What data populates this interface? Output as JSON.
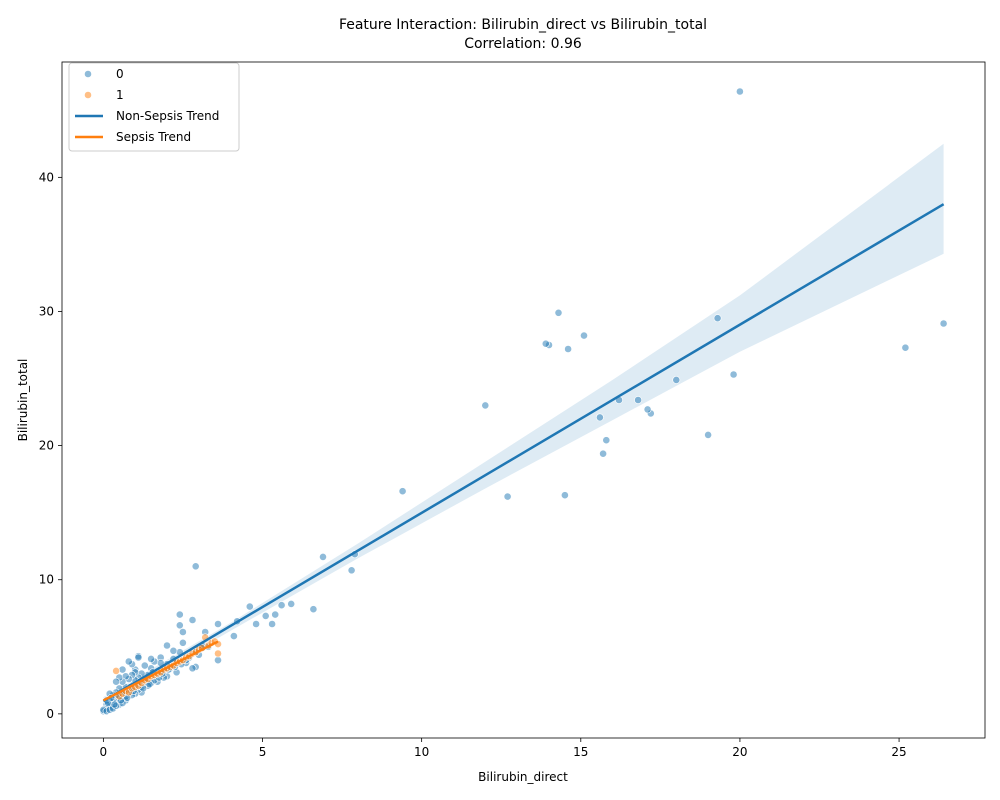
{
  "chart_data": {
    "type": "scatter",
    "title": "Feature Interaction: Bilirubin_direct vs Bilirubin_total",
    "subtitle": "Correlation: 0.96",
    "xlabel": "Bilirubin_direct",
    "ylabel": "Bilirubin_total",
    "xlim": [
      -1.3,
      27.7
    ],
    "ylim": [
      -1.8,
      48.6
    ],
    "xticks": [
      0,
      5,
      10,
      15,
      20,
      25
    ],
    "yticks": [
      0,
      10,
      20,
      30,
      40
    ],
    "grid": false,
    "legend_position": "top-left",
    "colors": {
      "nonsepsis": "#1f77b4",
      "sepsis": "#ff7f0e",
      "band": "#1f77b4"
    },
    "legend": [
      {
        "label": "0",
        "kind": "marker",
        "color": "#1f77b4"
      },
      {
        "label": "1",
        "kind": "marker",
        "color": "#ff7f0e"
      },
      {
        "label": "Non-Sepsis Trend",
        "kind": "line",
        "color": "#1f77b4"
      },
      {
        "label": "Sepsis Trend",
        "kind": "line",
        "color": "#ff7f0e"
      }
    ],
    "series": [
      {
        "name": "0",
        "color": "#1f77b4",
        "points": [
          [
            20.0,
            46.4
          ],
          [
            26.4,
            29.1
          ],
          [
            25.2,
            27.3
          ],
          [
            19.8,
            25.3
          ],
          [
            19.3,
            29.5
          ],
          [
            19.0,
            20.8
          ],
          [
            18.0,
            24.9
          ],
          [
            17.2,
            22.4
          ],
          [
            17.1,
            22.7
          ],
          [
            16.8,
            23.4
          ],
          [
            16.2,
            23.4
          ],
          [
            15.8,
            20.4
          ],
          [
            15.7,
            19.4
          ],
          [
            15.6,
            22.1
          ],
          [
            15.1,
            28.2
          ],
          [
            14.6,
            27.2
          ],
          [
            14.5,
            16.3
          ],
          [
            14.3,
            29.9
          ],
          [
            14.0,
            27.5
          ],
          [
            13.9,
            27.6
          ],
          [
            12.7,
            16.2
          ],
          [
            12.0,
            23.0
          ],
          [
            9.4,
            16.6
          ],
          [
            7.9,
            11.9
          ],
          [
            7.8,
            10.7
          ],
          [
            6.9,
            11.7
          ],
          [
            6.6,
            7.8
          ],
          [
            5.9,
            8.2
          ],
          [
            5.6,
            8.1
          ],
          [
            5.4,
            7.4
          ],
          [
            5.3,
            6.7
          ],
          [
            5.1,
            7.3
          ],
          [
            4.8,
            6.7
          ],
          [
            4.6,
            8.0
          ],
          [
            4.2,
            6.9
          ],
          [
            4.1,
            5.8
          ],
          [
            3.6,
            6.7
          ],
          [
            3.6,
            4.0
          ],
          [
            3.2,
            6.1
          ],
          [
            3.1,
            4.9
          ],
          [
            3.0,
            4.4
          ],
          [
            2.9,
            11.0
          ],
          [
            2.9,
            3.5
          ],
          [
            2.8,
            7.0
          ],
          [
            2.8,
            3.4
          ],
          [
            2.7,
            4.2
          ],
          [
            2.6,
            3.8
          ],
          [
            2.5,
            6.1
          ],
          [
            2.5,
            5.3
          ],
          [
            2.4,
            7.4
          ],
          [
            2.4,
            6.6
          ],
          [
            2.4,
            4.6
          ],
          [
            2.3,
            3.9
          ],
          [
            2.3,
            3.1
          ],
          [
            2.2,
            4.7
          ],
          [
            2.2,
            4.1
          ],
          [
            2.1,
            3.4
          ],
          [
            2.0,
            5.1
          ],
          [
            2.0,
            3.7
          ],
          [
            2.0,
            2.8
          ],
          [
            1.9,
            3.2
          ],
          [
            1.8,
            4.2
          ],
          [
            1.8,
            3.8
          ],
          [
            1.7,
            3.1
          ],
          [
            1.7,
            2.4
          ],
          [
            1.6,
            3.9
          ],
          [
            1.6,
            2.9
          ],
          [
            1.5,
            4.1
          ],
          [
            1.5,
            3.4
          ],
          [
            1.5,
            2.3
          ],
          [
            1.4,
            2.9
          ],
          [
            1.3,
            3.6
          ],
          [
            1.3,
            2.4
          ],
          [
            1.2,
            3.0
          ],
          [
            1.2,
            1.6
          ],
          [
            1.1,
            4.3
          ],
          [
            1.1,
            4.2
          ],
          [
            1.1,
            2.7
          ],
          [
            1.1,
            1.8
          ],
          [
            1.0,
            3.3
          ],
          [
            1.0,
            3.1
          ],
          [
            1.0,
            2.5
          ],
          [
            1.0,
            1.5
          ],
          [
            0.9,
            3.7
          ],
          [
            0.9,
            2.9
          ],
          [
            0.9,
            2.1
          ],
          [
            0.9,
            1.4
          ],
          [
            0.8,
            3.9
          ],
          [
            0.8,
            2.6
          ],
          [
            0.8,
            1.6
          ],
          [
            0.7,
            2.8
          ],
          [
            0.7,
            2.0
          ],
          [
            0.7,
            1.0
          ],
          [
            0.6,
            3.3
          ],
          [
            0.6,
            2.4
          ],
          [
            0.6,
            1.4
          ],
          [
            0.5,
            2.7
          ],
          [
            0.5,
            1.9
          ],
          [
            0.5,
            1.2
          ],
          [
            0.5,
            0.7
          ],
          [
            0.4,
            2.4
          ],
          [
            0.4,
            1.6
          ],
          [
            0.4,
            1.1
          ],
          [
            0.3,
            1.4
          ],
          [
            0.3,
            0.9
          ],
          [
            0.3,
            0.5
          ],
          [
            0.2,
            1.5
          ],
          [
            0.2,
            1.0
          ],
          [
            0.2,
            0.6
          ],
          [
            0.1,
            1.0
          ],
          [
            0.1,
            0.7
          ],
          [
            0.1,
            0.4
          ],
          [
            0.0,
            0.2
          ],
          [
            0.0,
            0.3
          ],
          [
            0.1,
            0.2
          ],
          [
            0.2,
            0.3
          ],
          [
            0.3,
            0.4
          ],
          [
            0.4,
            0.6
          ],
          [
            0.6,
            0.8
          ],
          [
            0.7,
            1.3
          ],
          [
            0.8,
            1.8
          ],
          [
            1.2,
            2.0
          ],
          [
            1.4,
            2.1
          ],
          [
            1.6,
            2.5
          ],
          [
            1.9,
            2.7
          ],
          [
            2.1,
            3.6
          ],
          [
            2.6,
            4.0
          ],
          [
            2.9,
            4.6
          ],
          [
            3.1,
            5.1
          ],
          [
            3.3,
            5.0
          ],
          [
            0.15,
            0.8
          ],
          [
            0.25,
            1.2
          ],
          [
            0.35,
            0.7
          ],
          [
            0.45,
            1.4
          ],
          [
            0.55,
            1.0
          ],
          [
            0.65,
            1.6
          ],
          [
            0.75,
            1.2
          ],
          [
            0.85,
            2.0
          ],
          [
            0.95,
            1.7
          ],
          [
            1.05,
            2.2
          ],
          [
            1.15,
            2.4
          ],
          [
            1.25,
            1.9
          ],
          [
            1.35,
            2.6
          ],
          [
            1.45,
            2.2
          ],
          [
            1.55,
            3.1
          ],
          [
            1.75,
            2.7
          ],
          [
            1.85,
            3.0
          ],
          [
            2.05,
            3.3
          ],
          [
            2.25,
            3.5
          ],
          [
            2.45,
            3.7
          ]
        ]
      },
      {
        "name": "1",
        "color": "#ff7f0e",
        "points": [
          [
            0.4,
            3.2
          ],
          [
            0.5,
            1.3
          ],
          [
            0.6,
            1.5
          ],
          [
            0.7,
            1.7
          ],
          [
            0.8,
            1.6
          ],
          [
            0.9,
            1.9
          ],
          [
            1.0,
            2.0
          ],
          [
            1.1,
            2.1
          ],
          [
            1.2,
            2.3
          ],
          [
            1.3,
            2.5
          ],
          [
            1.4,
            2.6
          ],
          [
            1.5,
            2.8
          ],
          [
            1.6,
            2.9
          ],
          [
            1.7,
            3.0
          ],
          [
            1.8,
            3.1
          ],
          [
            1.9,
            3.3
          ],
          [
            2.0,
            3.4
          ],
          [
            2.1,
            3.5
          ],
          [
            2.2,
            3.6
          ],
          [
            2.3,
            3.8
          ],
          [
            2.4,
            3.9
          ],
          [
            2.5,
            4.0
          ],
          [
            2.6,
            4.2
          ],
          [
            2.7,
            4.3
          ],
          [
            2.8,
            4.5
          ],
          [
            2.9,
            4.6
          ],
          [
            3.0,
            4.8
          ],
          [
            3.1,
            4.9
          ],
          [
            3.2,
            5.7
          ],
          [
            3.3,
            5.1
          ],
          [
            3.4,
            5.3
          ],
          [
            3.5,
            5.4
          ],
          [
            3.6,
            4.5
          ],
          [
            3.6,
            5.2
          ]
        ]
      }
    ],
    "trend_lines": [
      {
        "name": "Non-Sepsis Trend",
        "color": "#1f77b4",
        "x": [
          0.0,
          26.4
        ],
        "y": [
          0.95,
          38.0
        ],
        "ci_band": {
          "x": [
            0.0,
            4.0,
            8.0,
            12.0,
            16.0,
            20.0,
            26.4
          ],
          "lower": [
            0.65,
            6.2,
            11.6,
            16.8,
            21.9,
            27.0,
            34.3
          ],
          "upper": [
            1.25,
            6.8,
            12.7,
            18.8,
            24.9,
            31.2,
            42.5
          ]
        }
      },
      {
        "name": "Sepsis Trend",
        "color": "#ff7f0e",
        "x": [
          0.0,
          3.6
        ],
        "y": [
          1.0,
          5.4
        ]
      }
    ]
  }
}
